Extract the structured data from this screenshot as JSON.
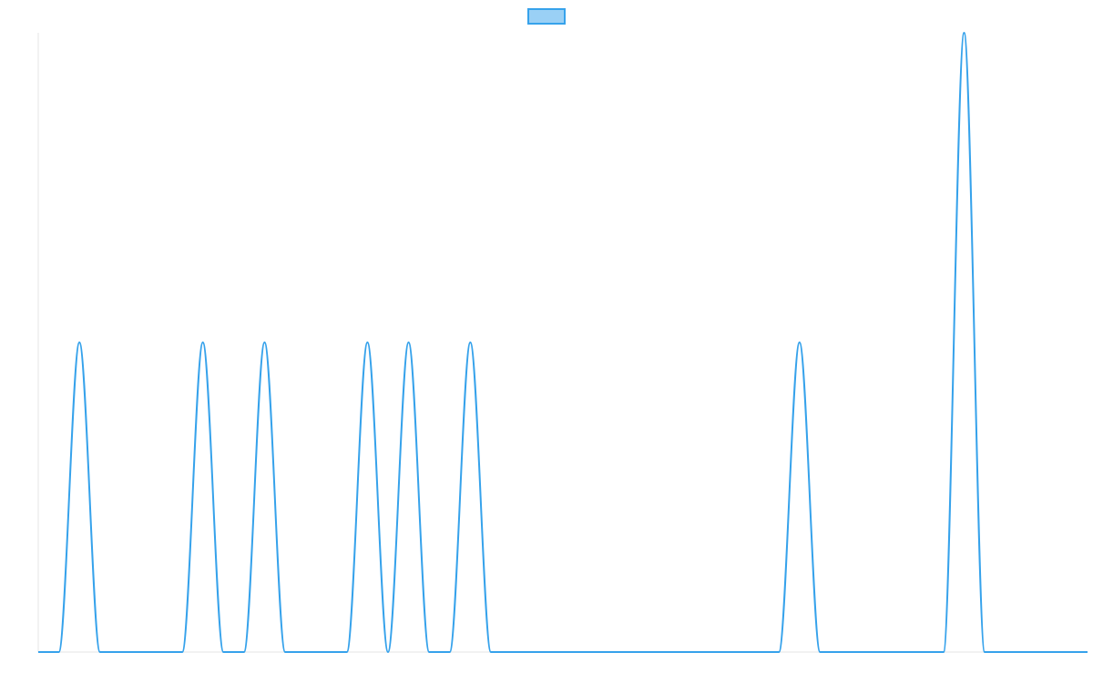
{
  "chart_data": {
    "type": "line",
    "title": "",
    "xlabel": "",
    "ylabel": "",
    "grid": false,
    "legend": {
      "position": "top-center",
      "entries": [
        {
          "name": "",
          "color": "#36a2eb",
          "fill": "#9ad0f5"
        }
      ]
    },
    "xlim": [
      0,
      51
    ],
    "ylim": [
      0,
      2
    ],
    "series": [
      {
        "name": "",
        "color": "#36a2eb",
        "x": [
          0,
          1,
          2,
          3,
          4,
          5,
          6,
          7,
          8,
          9,
          10,
          11,
          12,
          13,
          14,
          15,
          16,
          17,
          18,
          19,
          20,
          21,
          22,
          23,
          24,
          25,
          26,
          27,
          28,
          29,
          30,
          31,
          32,
          33,
          34,
          35,
          36,
          37,
          38,
          39,
          40,
          41,
          42,
          43,
          44,
          45,
          46,
          47,
          48,
          49,
          50,
          51
        ],
        "y": [
          0,
          0,
          1,
          0,
          0,
          0,
          0,
          0,
          1,
          0,
          0,
          1,
          0,
          0,
          0,
          0,
          1,
          0,
          1,
          0,
          0,
          1,
          0,
          0,
          0,
          0,
          0,
          0,
          0,
          0,
          0,
          0,
          0,
          0,
          0,
          0,
          0,
          1,
          0,
          0,
          0,
          0,
          0,
          0,
          0,
          2,
          0,
          0,
          0,
          0,
          0,
          0
        ]
      }
    ]
  }
}
